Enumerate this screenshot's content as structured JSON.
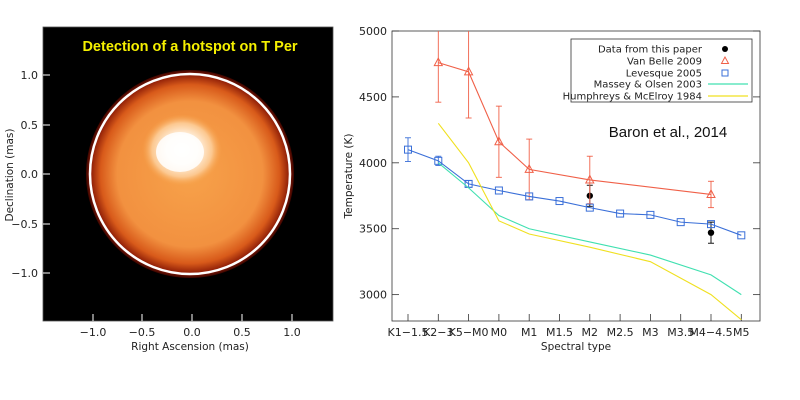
{
  "left_panel": {
    "title": "Detection of a hotspot on T Per",
    "title_color": "#f5f000",
    "xlabel": "Right Ascension (mas)",
    "ylabel": "Declination (mas)",
    "xticks": [
      "−1.0",
      "−0.5",
      "0.0",
      "0.5",
      "1.0"
    ],
    "yticks": [
      "1.0",
      "0.5",
      "0.0",
      "−0.5",
      "−1.0"
    ],
    "image_type": "stellar-intensity-map",
    "colormap": "black-red-orange-white",
    "circle_color": "#ffffff"
  },
  "annotation": "Baron et al., 2014",
  "chart_data": {
    "type": "line",
    "xlabel": "Spectral type",
    "ylabel": "Temperature (K)",
    "categories": [
      "K1−1.5",
      "K2−3",
      "K5−M0",
      "M0",
      "M1",
      "M1.5",
      "M2",
      "M2.5",
      "M3",
      "M3.5",
      "M4−4.5",
      "M5"
    ],
    "ylim": [
      2800,
      5000
    ],
    "yticks": [
      3000,
      3500,
      4000,
      4500,
      5000
    ],
    "legend_position": "top-right",
    "series": [
      {
        "name": "Data from this paper",
        "kind": "points",
        "marker": "filled-circle",
        "color": "#000000",
        "x": [
          6,
          10
        ],
        "y": [
          3750,
          3470
        ],
        "yerr": [
          80,
          80
        ]
      },
      {
        "name": "Van Belle 2009",
        "kind": "line",
        "marker": "triangle",
        "color": "#f06048",
        "x": [
          1,
          2,
          3,
          4,
          6,
          10
        ],
        "y": [
          4760,
          4690,
          4160,
          3950,
          3870,
          3760
        ],
        "yerr": [
          300,
          350,
          270,
          230,
          180,
          100
        ]
      },
      {
        "name": "Levesque 2005",
        "kind": "line",
        "marker": "square",
        "color": "#3a6fd8",
        "x": [
          0,
          1,
          2,
          3,
          4,
          5,
          6,
          7,
          8,
          9,
          10,
          11
        ],
        "y": [
          4100,
          4015,
          3840,
          3790,
          3745,
          3710,
          3660,
          3615,
          3605,
          3550,
          3535,
          3450
        ],
        "yerr": [
          90,
          35,
          25,
          0,
          0,
          0,
          0,
          0,
          0,
          0,
          0,
          0
        ]
      },
      {
        "name": "Massey & Olsen 2003",
        "kind": "line",
        "marker": "none",
        "color": "#40e0b0",
        "x": [
          1,
          2,
          3,
          4,
          6,
          8,
          10,
          11
        ],
        "y": [
          4000,
          3810,
          3600,
          3500,
          3400,
          3300,
          3150,
          3000
        ],
        "yerr": []
      },
      {
        "name": "Humphreys & McElroy 1984",
        "kind": "line",
        "marker": "none",
        "color": "#f0e020",
        "x": [
          1,
          2,
          3,
          4,
          6,
          8,
          10,
          11
        ],
        "y": [
          4300,
          4000,
          3560,
          3460,
          3360,
          3250,
          3000,
          2810
        ],
        "yerr": []
      }
    ]
  }
}
